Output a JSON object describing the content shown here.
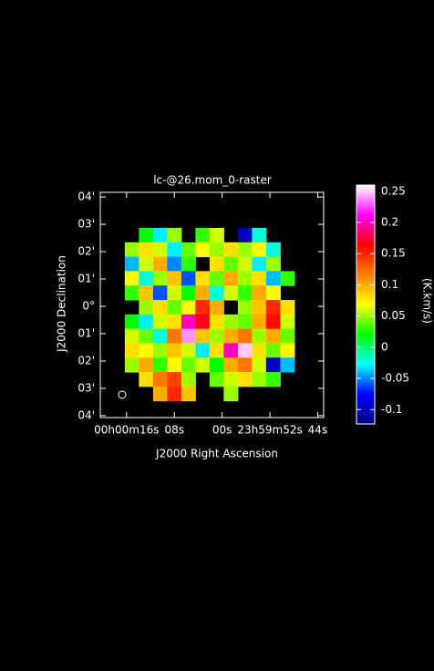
{
  "chart_data": {
    "type": "raster",
    "title": "lc-@26.mom_0-raster",
    "x_label": "J2000 Right Ascension",
    "y_label": "J2000 Declination",
    "colorbar_label": "(K.km/s)",
    "xlim": [
      20.4,
      -17
    ],
    "ylim": [
      -4.07,
      4.17
    ],
    "xticks": [
      {
        "value": 16,
        "label": "00h00m16s"
      },
      {
        "value": 8,
        "label": "08s"
      },
      {
        "value": 0,
        "label": "00s"
      },
      {
        "value": -8,
        "label": "23h59m52s"
      },
      {
        "value": -16,
        "label": "44s"
      }
    ],
    "yticks": [
      {
        "value": 4,
        "label": "04'"
      },
      {
        "value": 3,
        "label": "03'"
      },
      {
        "value": 2,
        "label": "02'"
      },
      {
        "value": 1,
        "label": "01'"
      },
      {
        "value": 0,
        "label": "0°"
      },
      {
        "value": -1,
        "label": "01'"
      },
      {
        "value": -2,
        "label": "02'"
      },
      {
        "value": -3,
        "label": "03'"
      },
      {
        "value": -4,
        "label": "04'"
      }
    ],
    "clim": [
      -0.123,
      0.26
    ],
    "cticks": [
      0.25,
      0.2,
      0.15,
      0.1,
      0.05,
      0,
      -0.05,
      -0.1
    ],
    "colormap": [
      "#000080",
      "#0000ff",
      "#00ffff",
      "#00ff00",
      "#ffff00",
      "#ff8000",
      "#ff0000",
      "#ff00ff",
      "#ffffff"
    ],
    "image": {
      "extent": [
        16.3,
        -12.1,
        2.87,
        -3.46
      ],
      "values": [
        [
          null,
          0.02,
          -0.03,
          0.05,
          null,
          0.03,
          0.06,
          null,
          -0.1,
          -0.02,
          null,
          null
        ],
        [
          0.05,
          0.08,
          0.06,
          -0.03,
          0.04,
          0.07,
          0.05,
          0.08,
          0.05,
          0.07,
          -0.02,
          null
        ],
        [
          -0.04,
          0.06,
          0.1,
          -0.05,
          0.03,
          null,
          0.08,
          0.04,
          0.06,
          -0.03,
          0.05,
          null
        ],
        [
          0.07,
          -0.02,
          0.05,
          0.09,
          -0.06,
          0.08,
          0.04,
          0.1,
          0.05,
          0.08,
          -0.04,
          0.03
        ],
        [
          0.03,
          0.09,
          -0.06,
          0.06,
          0.02,
          0.1,
          -0.02,
          0.06,
          0.03,
          0.1,
          0.07,
          null
        ],
        [
          null,
          0.05,
          0.08,
          0.04,
          0.07,
          0.15,
          0.1,
          null,
          0.05,
          0.09,
          0.15,
          0.08
        ],
        [
          0.02,
          -0.03,
          0.06,
          0.08,
          0.2,
          0.17,
          0.08,
          0.05,
          0.04,
          0.1,
          0.16,
          0.06
        ],
        [
          0.06,
          0.04,
          -0.02,
          0.12,
          0.24,
          0.09,
          0.05,
          0.1,
          0.12,
          0.05,
          0.1,
          0.04
        ],
        [
          0.08,
          0.07,
          0.05,
          0.09,
          0.06,
          -0.03,
          0.08,
          0.2,
          0.25,
          0.08,
          0.04,
          0.07
        ],
        [
          0.05,
          0.1,
          0.03,
          0.07,
          0.04,
          0.06,
          0.02,
          0.1,
          0.12,
          0.06,
          -0.1,
          -0.04
        ],
        [
          null,
          0.08,
          0.12,
          0.14,
          0.05,
          null,
          0.04,
          0.06,
          0.08,
          0.05,
          0.03,
          null
        ],
        [
          null,
          null,
          0.1,
          0.15,
          0.09,
          null,
          null,
          0.05,
          null,
          null,
          null,
          null
        ]
      ]
    }
  }
}
